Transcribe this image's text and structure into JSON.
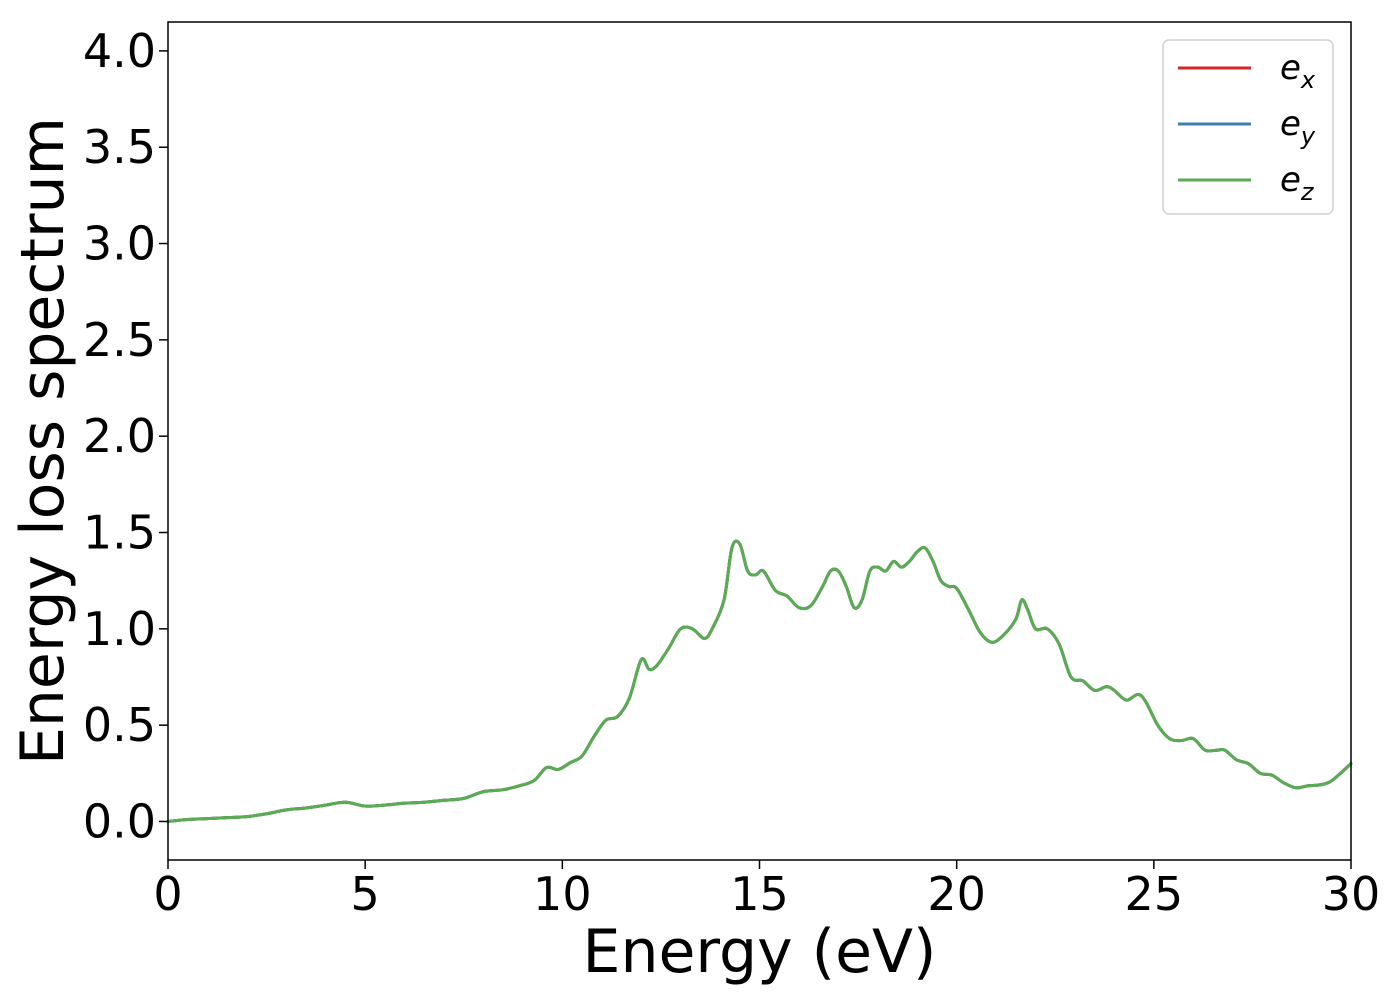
{
  "chart_data": {
    "type": "line",
    "title": "",
    "xlabel": "Energy (eV)",
    "ylabel": "Energy loss spectrum",
    "xlim": [
      0,
      30
    ],
    "ylim": [
      -0.2,
      4.15
    ],
    "xticks": [
      "0",
      "5",
      "10",
      "15",
      "20",
      "25",
      "30"
    ],
    "yticks": [
      "0.0",
      "0.5",
      "1.0",
      "1.5",
      "2.0",
      "2.5",
      "3.0",
      "3.5",
      "4.0"
    ],
    "grid": false,
    "legend_position": "top-right",
    "x": [
      0,
      0.5,
      1.0,
      1.5,
      2.0,
      2.5,
      3.0,
      3.5,
      4.0,
      4.5,
      5.0,
      5.5,
      6.0,
      6.5,
      7.0,
      7.5,
      8.0,
      8.5,
      9.0,
      9.3,
      9.6,
      9.9,
      10.2,
      10.5,
      10.8,
      11.1,
      11.4,
      11.7,
      12.0,
      12.2,
      12.4,
      12.7,
      13.0,
      13.3,
      13.6,
      13.8,
      14.1,
      14.3,
      14.5,
      14.7,
      14.9,
      15.1,
      15.4,
      15.7,
      16.0,
      16.3,
      16.6,
      16.8,
      17.0,
      17.2,
      17.4,
      17.6,
      17.8,
      18.0,
      18.2,
      18.4,
      18.6,
      18.8,
      19.0,
      19.2,
      19.4,
      19.6,
      19.8,
      20.0,
      20.3,
      20.6,
      20.9,
      21.2,
      21.5,
      21.65,
      21.8,
      22.0,
      22.3,
      22.6,
      22.9,
      23.2,
      23.5,
      23.8,
      24.0,
      24.3,
      24.6,
      24.8,
      25.1,
      25.4,
      25.7,
      26.0,
      26.3,
      26.6,
      26.8,
      27.1,
      27.4,
      27.7,
      28.0,
      28.3,
      28.6,
      28.9,
      29.2,
      29.5,
      30.0
    ],
    "series": [
      {
        "name": "e_x",
        "legend_main": "e",
        "legend_sub": "x",
        "color": "#d62728",
        "values": [
          0.0,
          0.01,
          0.015,
          0.02,
          0.025,
          0.04,
          0.06,
          0.07,
          0.085,
          0.1,
          0.08,
          0.085,
          0.095,
          0.1,
          0.11,
          0.12,
          0.155,
          0.165,
          0.19,
          0.215,
          0.28,
          0.27,
          0.305,
          0.34,
          0.44,
          0.525,
          0.545,
          0.64,
          0.84,
          0.79,
          0.81,
          0.9,
          1.0,
          1.0,
          0.95,
          1.0,
          1.15,
          1.42,
          1.44,
          1.3,
          1.28,
          1.3,
          1.2,
          1.17,
          1.11,
          1.12,
          1.22,
          1.3,
          1.3,
          1.22,
          1.11,
          1.15,
          1.3,
          1.32,
          1.3,
          1.35,
          1.32,
          1.35,
          1.4,
          1.42,
          1.35,
          1.25,
          1.22,
          1.21,
          1.1,
          0.98,
          0.93,
          0.97,
          1.05,
          1.15,
          1.1,
          1.0,
          1.0,
          0.92,
          0.75,
          0.73,
          0.68,
          0.7,
          0.68,
          0.63,
          0.66,
          0.62,
          0.5,
          0.43,
          0.42,
          0.43,
          0.37,
          0.37,
          0.37,
          0.32,
          0.3,
          0.25,
          0.24,
          0.2,
          0.175,
          0.185,
          0.19,
          0.21,
          0.3
        ]
      },
      {
        "name": "e_y",
        "legend_main": "e",
        "legend_sub": "y",
        "color": "#3c7fb1",
        "values": [
          0.0,
          0.01,
          0.015,
          0.02,
          0.025,
          0.04,
          0.06,
          0.07,
          0.085,
          0.1,
          0.08,
          0.085,
          0.095,
          0.1,
          0.11,
          0.12,
          0.155,
          0.165,
          0.19,
          0.215,
          0.28,
          0.27,
          0.305,
          0.34,
          0.44,
          0.525,
          0.545,
          0.64,
          0.84,
          0.79,
          0.81,
          0.9,
          1.0,
          1.0,
          0.95,
          1.0,
          1.15,
          1.42,
          1.44,
          1.3,
          1.28,
          1.3,
          1.2,
          1.17,
          1.11,
          1.12,
          1.22,
          1.3,
          1.3,
          1.22,
          1.11,
          1.15,
          1.3,
          1.32,
          1.3,
          1.35,
          1.32,
          1.35,
          1.4,
          1.42,
          1.35,
          1.25,
          1.22,
          1.21,
          1.1,
          0.98,
          0.93,
          0.97,
          1.05,
          1.15,
          1.1,
          1.0,
          1.0,
          0.92,
          0.75,
          0.73,
          0.68,
          0.7,
          0.68,
          0.63,
          0.66,
          0.62,
          0.5,
          0.43,
          0.42,
          0.43,
          0.37,
          0.37,
          0.37,
          0.32,
          0.3,
          0.25,
          0.24,
          0.2,
          0.175,
          0.185,
          0.19,
          0.21,
          0.3
        ]
      },
      {
        "name": "e_z",
        "legend_main": "e",
        "legend_sub": "z",
        "color": "#5aac52",
        "values": [
          0.0,
          0.01,
          0.015,
          0.02,
          0.025,
          0.04,
          0.06,
          0.07,
          0.085,
          0.1,
          0.08,
          0.085,
          0.095,
          0.1,
          0.11,
          0.12,
          0.155,
          0.165,
          0.19,
          0.215,
          0.28,
          0.27,
          0.305,
          0.34,
          0.44,
          0.525,
          0.545,
          0.64,
          0.84,
          0.79,
          0.81,
          0.9,
          1.0,
          1.0,
          0.95,
          1.0,
          1.15,
          1.42,
          1.44,
          1.3,
          1.28,
          1.3,
          1.2,
          1.17,
          1.11,
          1.12,
          1.22,
          1.3,
          1.3,
          1.22,
          1.11,
          1.15,
          1.3,
          1.32,
          1.3,
          1.35,
          1.32,
          1.35,
          1.4,
          1.42,
          1.35,
          1.25,
          1.22,
          1.21,
          1.1,
          0.98,
          0.93,
          0.97,
          1.05,
          1.15,
          1.1,
          1.0,
          1.0,
          0.92,
          0.75,
          0.73,
          0.68,
          0.7,
          0.68,
          0.63,
          0.66,
          0.62,
          0.5,
          0.43,
          0.42,
          0.43,
          0.37,
          0.37,
          0.37,
          0.32,
          0.3,
          0.25,
          0.24,
          0.2,
          0.175,
          0.185,
          0.19,
          0.21,
          0.3
        ]
      }
    ]
  }
}
